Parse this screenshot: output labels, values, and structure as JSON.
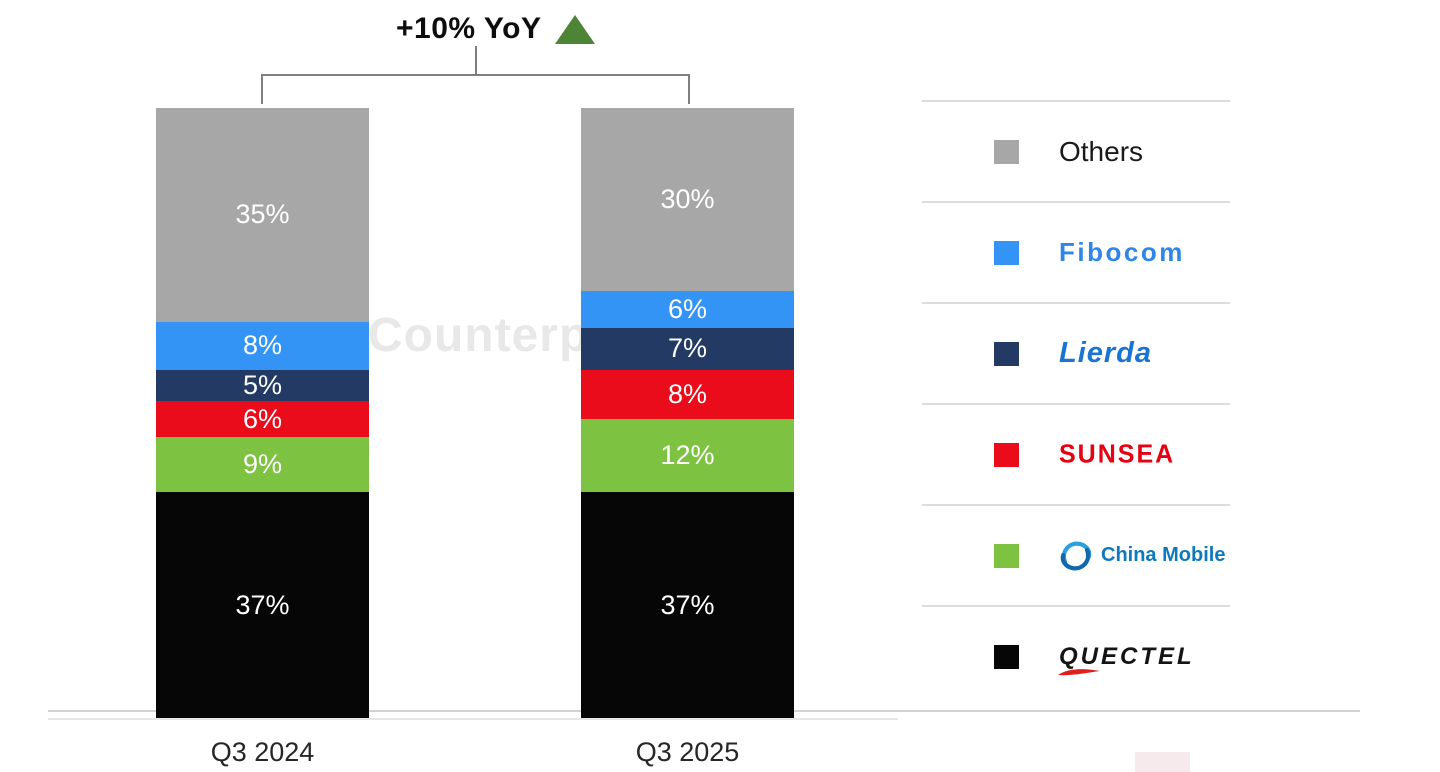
{
  "title": {
    "label": "+10% YoY",
    "arrow_icon": "up-triangle",
    "arrow_color": "#4e8435"
  },
  "watermark": {
    "text": "Counterpoint"
  },
  "chart_data": {
    "type": "bar",
    "stacked": true,
    "unit": "%",
    "title": "+10% YoY",
    "categories": [
      "Q3 2024",
      "Q3 2025"
    ],
    "series": [
      {
        "name": "Quectel",
        "color": "#060606",
        "values": [
          37,
          37
        ]
      },
      {
        "name": "China Mobile",
        "color": "#7dc241",
        "values": [
          9,
          12
        ]
      },
      {
        "name": "Sunsea",
        "color": "#ea0c1a",
        "values": [
          6,
          8
        ]
      },
      {
        "name": "Lierda",
        "color": "#223a64",
        "values": [
          5,
          7
        ]
      },
      {
        "name": "Fibocom",
        "color": "#3494f6",
        "values": [
          8,
          6
        ]
      },
      {
        "name": "Others",
        "color": "#a7a7a7",
        "values": [
          35,
          30
        ]
      }
    ],
    "ylim": [
      0,
      100
    ],
    "grid": false,
    "legend_position": "right",
    "value_label_color": "#ffffff"
  },
  "legend": {
    "items": [
      {
        "label": "Others",
        "color": "#a7a7a7"
      },
      {
        "label": "Fibocom",
        "color": "#3494f6"
      },
      {
        "label": "Lierda",
        "color": "#223a64"
      },
      {
        "label": "SUNSEA",
        "color": "#ea0c1a"
      },
      {
        "label": "China Mobile",
        "color": "#7dc241"
      },
      {
        "label": "QUECTEL",
        "color": "#060606"
      }
    ]
  }
}
